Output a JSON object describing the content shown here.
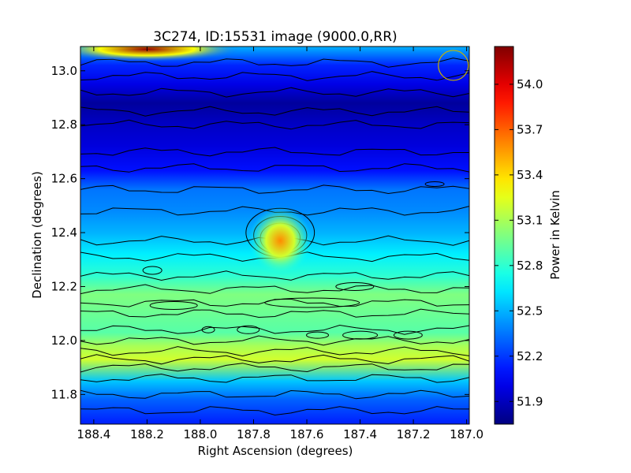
{
  "chart_data": {
    "type": "heatmap",
    "title": "3C274, ID:15531 image (9000.0,RR)",
    "xlabel": "Right Ascension (degrees)",
    "ylabel": "Declination (degrees)",
    "xlim": [
      188.45,
      186.99
    ],
    "ylim": [
      11.69,
      13.09
    ],
    "x_ticks": [
      188.4,
      188.2,
      188.0,
      187.8,
      187.6,
      187.4,
      187.2,
      187.0
    ],
    "x_tick_labels": [
      "188.4",
      "188.2",
      "188.0",
      "187.8",
      "187.6",
      "187.4",
      "187.2",
      "187.0"
    ],
    "y_ticks": [
      11.8,
      12.0,
      12.2,
      12.4,
      12.6,
      12.8,
      13.0
    ],
    "y_tick_labels": [
      "11.8",
      "12.0",
      "12.2",
      "12.4",
      "12.6",
      "12.8",
      "13.0"
    ],
    "colorbar": {
      "label": "Power in Kelvin",
      "range": [
        51.75,
        54.25
      ],
      "ticks": [
        51.9,
        52.2,
        52.5,
        52.8,
        53.1,
        53.4,
        53.7,
        54.0
      ],
      "tick_labels": [
        "51.9",
        "52.2",
        "52.5",
        "52.8",
        "53.1",
        "53.4",
        "53.7",
        "54.0"
      ],
      "colormap": "jet"
    },
    "declination_profile": [
      {
        "dec": 11.7,
        "value": 52.15
      },
      {
        "dec": 11.78,
        "value": 52.3
      },
      {
        "dec": 11.85,
        "value": 52.55
      },
      {
        "dec": 11.93,
        "value": 53.2
      },
      {
        "dec": 11.98,
        "value": 53.1
      },
      {
        "dec": 12.03,
        "value": 52.9
      },
      {
        "dec": 12.1,
        "value": 52.95
      },
      {
        "dec": 12.17,
        "value": 53.0
      },
      {
        "dec": 12.24,
        "value": 52.8
      },
      {
        "dec": 12.32,
        "value": 52.65
      },
      {
        "dec": 12.4,
        "value": 52.5
      },
      {
        "dec": 12.48,
        "value": 52.4
      },
      {
        "dec": 12.56,
        "value": 52.35
      },
      {
        "dec": 12.63,
        "value": 52.1
      },
      {
        "dec": 12.72,
        "value": 51.98
      },
      {
        "dec": 12.8,
        "value": 51.92
      },
      {
        "dec": 12.88,
        "value": 51.82
      },
      {
        "dec": 12.95,
        "value": 52.0
      },
      {
        "dec": 13.02,
        "value": 52.15
      },
      {
        "dec": 13.09,
        "value": 52.5
      }
    ],
    "features": [
      {
        "name": "peak",
        "ra": 187.7,
        "dec": 12.37,
        "value": 53.6
      },
      {
        "name": "bright band top-left",
        "ra": 188.2,
        "dec": 13.08,
        "value": 54.2
      }
    ],
    "beam_marker": {
      "ra": 187.05,
      "dec": 13.02,
      "color": "#c8b400"
    },
    "grid": false
  }
}
